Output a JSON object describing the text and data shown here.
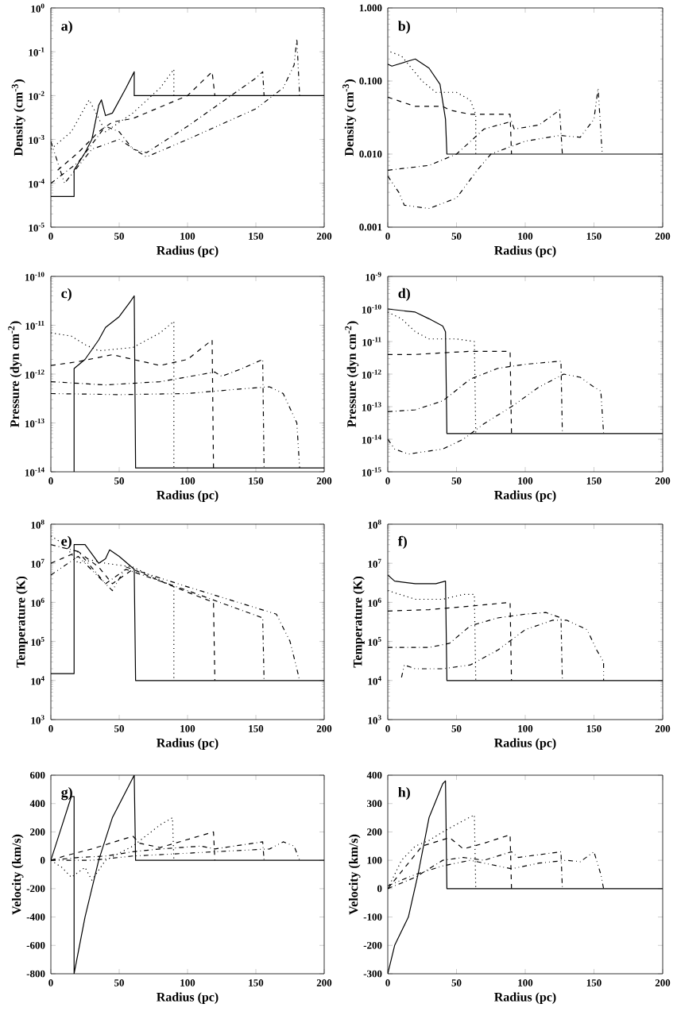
{
  "chart_data": [
    {
      "type": "line",
      "xlabel": "Radius (pc)",
      "ylabel": "Density (cm$^{-3}$)",
      "annotations": [
        "a)"
      ],
      "log": true,
      "xlim": [
        0,
        200
      ],
      "xticks": [
        0,
        50,
        100,
        150,
        200
      ],
      "ylim": [
        1e-05,
        1
      ],
      "yticks": [
        {
          "value": 1e-05,
          "label": "10$^{-5}$"
        },
        {
          "value": 0.0001,
          "label": "10$^{-4}$"
        },
        {
          "value": 0.001,
          "label": "10$^{-3}$"
        },
        {
          "value": 0.01,
          "label": "10$^{-2}$"
        },
        {
          "value": 0.1,
          "label": "10$^{-1}$"
        },
        {
          "value": 1,
          "label": "10$^{0}$"
        }
      ],
      "series": [
        {
          "color": "#000000",
          "line_style": "solid",
          "x": [
            0,
            17,
            17,
            25,
            30,
            35,
            37,
            40,
            45,
            55,
            61,
            61,
            200
          ],
          "values": [
            5e-05,
            5e-05,
            0.0002,
            0.0005,
            0.001,
            0.006,
            0.008,
            0.0035,
            0.004,
            0.015,
            0.035,
            0.01,
            0.01
          ]
        },
        {
          "color": "#000000",
          "line_style": "dotted",
          "x": [
            0,
            15,
            28,
            33,
            40,
            60,
            80,
            90,
            90
          ],
          "values": [
            0.0006,
            0.0015,
            0.008,
            0.004,
            0.0015,
            0.004,
            0.015,
            0.04,
            0.01
          ]
        },
        {
          "color": "#000000",
          "line_style": "dashed",
          "x": [
            5,
            20,
            35,
            45,
            60,
            100,
            118,
            120
          ],
          "values": [
            0.0002,
            0.0005,
            0.0015,
            0.0025,
            0.003,
            0.01,
            0.035,
            0.01
          ]
        },
        {
          "color": "#000000",
          "line_style": "dashdot",
          "x": [
            0,
            20,
            40,
            50,
            60,
            70,
            100,
            150,
            155,
            156
          ],
          "values": [
            0.0001,
            0.0003,
            0.002,
            0.0015,
            0.0006,
            0.0005,
            0.002,
            0.025,
            0.035,
            0.01
          ]
        },
        {
          "color": "#000000",
          "line_style": "dashdotdot",
          "x": [
            0,
            5,
            10,
            30,
            50,
            65,
            70,
            100,
            150,
            170,
            178,
            180,
            182
          ],
          "values": [
            0.0009,
            0.0003,
            0.0001,
            0.0006,
            0.001,
            0.0005,
            0.0004,
            0.001,
            0.005,
            0.015,
            0.05,
            0.2,
            0.01
          ]
        }
      ]
    },
    {
      "type": "line",
      "xlabel": "Radius (pc)",
      "ylabel": "Density (cm$^{-3}$)",
      "annotations": [
        "b)"
      ],
      "log": true,
      "xlim": [
        0,
        200
      ],
      "xticks": [
        0,
        50,
        100,
        150,
        200
      ],
      "ylim": [
        0.001,
        1
      ],
      "yticks": [
        {
          "value": 0.001,
          "label": "0.001"
        },
        {
          "value": 0.01,
          "label": "0.010"
        },
        {
          "value": 0.1,
          "label": "0.100"
        },
        {
          "value": 1,
          "label": "1.000"
        }
      ],
      "series": [
        {
          "color": "#000000",
          "line_style": "solid",
          "x": [
            0,
            3,
            20,
            30,
            38,
            42,
            43,
            200
          ],
          "values": [
            0.17,
            0.16,
            0.2,
            0.15,
            0.09,
            0.03,
            0.01,
            0.01
          ]
        },
        {
          "color": "#000000",
          "line_style": "dotted",
          "x": [
            2,
            10,
            25,
            35,
            50,
            60,
            64,
            64
          ],
          "values": [
            0.25,
            0.22,
            0.1,
            0.07,
            0.07,
            0.055,
            0.035,
            0.01
          ]
        },
        {
          "color": "#000000",
          "line_style": "dashed",
          "x": [
            0,
            20,
            40,
            45,
            60,
            89,
            90
          ],
          "values": [
            0.06,
            0.045,
            0.045,
            0.04,
            0.035,
            0.035,
            0.01
          ]
        },
        {
          "color": "#000000",
          "line_style": "dashdot",
          "x": [
            0,
            30,
            50,
            70,
            90,
            92,
            110,
            125,
            127
          ],
          "values": [
            0.006,
            0.007,
            0.01,
            0.022,
            0.028,
            0.022,
            0.025,
            0.04,
            0.01
          ]
        },
        {
          "color": "#000000",
          "line_style": "dashdotdot",
          "x": [
            0,
            8,
            12,
            30,
            50,
            65,
            75,
            100,
            125,
            140,
            150,
            153,
            156
          ],
          "values": [
            0.005,
            0.003,
            0.002,
            0.0018,
            0.0025,
            0.006,
            0.01,
            0.015,
            0.018,
            0.017,
            0.03,
            0.08,
            0.01
          ]
        }
      ]
    },
    {
      "type": "line",
      "xlabel": "Radius (pc)",
      "ylabel": "Pressure (dyn cm$^{-2}$)",
      "annotations": [
        "c)"
      ],
      "log": true,
      "xlim": [
        0,
        200
      ],
      "xticks": [
        0,
        50,
        100,
        150,
        200
      ],
      "ylim": [
        1e-14,
        1e-10
      ],
      "yticks": [
        {
          "value": 1e-14,
          "label": "10$^{-14}$"
        },
        {
          "value": 1e-13,
          "label": "10$^{-13}$"
        },
        {
          "value": 1e-12,
          "label": "10$^{-12}$"
        },
        {
          "value": 1e-11,
          "label": "10$^{-11}$"
        },
        {
          "value": 1e-10,
          "label": "10$^{-10}$"
        }
      ],
      "series": [
        {
          "color": "#000000",
          "line_style": "solid",
          "x": [
            17,
            17,
            25,
            35,
            40,
            50,
            58,
            61,
            62,
            200
          ],
          "values": [
            1e-14,
            1.3e-12,
            2e-12,
            5e-12,
            9e-12,
            1.5e-11,
            3e-11,
            4e-11,
            1.2e-14,
            1.2e-14
          ]
        },
        {
          "color": "#000000",
          "line_style": "dotted",
          "x": [
            0,
            15,
            25,
            35,
            60,
            80,
            90,
            90
          ],
          "values": [
            7e-12,
            6e-12,
            4e-12,
            3e-12,
            3.5e-12,
            7e-12,
            1.2e-11,
            1.2e-14
          ]
        },
        {
          "color": "#000000",
          "line_style": "dashed",
          "x": [
            0,
            20,
            45,
            60,
            80,
            100,
            118,
            119
          ],
          "values": [
            1.5e-12,
            1.8e-12,
            2.5e-12,
            2e-12,
            1.5e-12,
            2e-12,
            5e-12,
            1.2e-14
          ]
        },
        {
          "color": "#000000",
          "line_style": "dashdot",
          "x": [
            0,
            40,
            80,
            120,
            125,
            140,
            155,
            156
          ],
          "values": [
            7e-13,
            6e-13,
            7e-13,
            1.1e-12,
            9e-13,
            1.3e-12,
            2e-12,
            1.2e-14
          ]
        },
        {
          "color": "#000000",
          "line_style": "dashdotdot",
          "x": [
            0,
            50,
            100,
            140,
            160,
            170,
            175,
            180,
            182
          ],
          "values": [
            4e-13,
            3.8e-13,
            4e-13,
            5e-13,
            5.5e-13,
            4e-13,
            2e-13,
            1e-13,
            1.2e-14
          ]
        }
      ]
    },
    {
      "type": "line",
      "xlabel": "Radius (pc)",
      "ylabel": "Pressure (dyn cm$^{-2}$)",
      "annotations": [
        "d)"
      ],
      "log": true,
      "xlim": [
        0,
        200
      ],
      "xticks": [
        0,
        50,
        100,
        150,
        200
      ],
      "ylim": [
        1e-15,
        1e-09
      ],
      "yticks": [
        {
          "value": 1e-15,
          "label": "10$^{-15}$"
        },
        {
          "value": 1e-14,
          "label": "10$^{-14}$"
        },
        {
          "value": 1e-13,
          "label": "10$^{-13}$"
        },
        {
          "value": 1e-12,
          "label": "10$^{-12}$"
        },
        {
          "value": 1e-11,
          "label": "10$^{-11}$"
        },
        {
          "value": 1e-10,
          "label": "10$^{-10}$"
        },
        {
          "value": 1e-09,
          "label": "10$^{-9}$"
        }
      ],
      "series": [
        {
          "color": "#000000",
          "line_style": "solid",
          "x": [
            0,
            20,
            30,
            40,
            42,
            43,
            200
          ],
          "values": [
            1e-10,
            8e-11,
            5e-11,
            3e-11,
            2e-11,
            1.5e-14,
            1.5e-14
          ]
        },
        {
          "color": "#000000",
          "line_style": "dotted",
          "x": [
            0,
            10,
            20,
            30,
            50,
            63,
            64
          ],
          "values": [
            8e-11,
            5e-11,
            2e-11,
            1.2e-11,
            1.2e-11,
            1e-11,
            1.5e-14
          ]
        },
        {
          "color": "#000000",
          "line_style": "dashed",
          "x": [
            0,
            20,
            40,
            60,
            89,
            90
          ],
          "values": [
            4e-12,
            4e-12,
            4.5e-12,
            5e-12,
            5e-12,
            1.5e-14
          ]
        },
        {
          "color": "#000000",
          "line_style": "dashdot",
          "x": [
            0,
            20,
            40,
            60,
            80,
            100,
            126,
            127
          ],
          "values": [
            7e-14,
            8e-14,
            1.5e-13,
            7e-13,
            1.5e-12,
            2e-12,
            2.5e-12,
            1.5e-14
          ]
        },
        {
          "color": "#000000",
          "line_style": "dashdotdot",
          "x": [
            0,
            5,
            15,
            40,
            55,
            70,
            90,
            110,
            128,
            140,
            150,
            155,
            157
          ],
          "values": [
            1e-14,
            5e-15,
            3.5e-15,
            5e-15,
            1e-14,
            3e-14,
            1e-13,
            4e-13,
            1e-12,
            8e-13,
            4e-13,
            3e-13,
            1.5e-14
          ]
        }
      ]
    },
    {
      "type": "line",
      "xlabel": "Radius (pc)",
      "ylabel": "Temperature (K)",
      "annotations": [
        "e)"
      ],
      "log": true,
      "xlim": [
        0,
        200
      ],
      "xticks": [
        0,
        50,
        100,
        150,
        200
      ],
      "ylim": [
        1000,
        100000000.0
      ],
      "yticks": [
        {
          "value": 1000,
          "label": "10$^{3}$"
        },
        {
          "value": 10000.0,
          "label": "10$^{4}$"
        },
        {
          "value": 100000.0,
          "label": "10$^{5}$"
        },
        {
          "value": 1000000.0,
          "label": "10$^{6}$"
        },
        {
          "value": 10000000.0,
          "label": "10$^{7}$"
        },
        {
          "value": 100000000.0,
          "label": "10$^{8}$"
        }
      ],
      "series": [
        {
          "color": "#000000",
          "line_style": "solid",
          "x": [
            0,
            17,
            17,
            25,
            35,
            40,
            43,
            50,
            61,
            62,
            200
          ],
          "values": [
            15000.0,
            15000.0,
            30000000.0,
            30000000.0,
            10000000.0,
            13000000.0,
            22000000.0,
            15000000.0,
            7000000.0,
            10000.0,
            10000.0
          ]
        },
        {
          "color": "#000000",
          "line_style": "dotted",
          "x": [
            0,
            10,
            20,
            30,
            40,
            60,
            90,
            90
          ],
          "values": [
            50000000.0,
            30000000.0,
            10000000.0,
            12000000.0,
            10000000.0,
            8000000.0,
            2500000.0,
            10000.0
          ]
        },
        {
          "color": "#000000",
          "line_style": "dashed",
          "x": [
            0,
            20,
            35,
            45,
            60,
            90,
            119,
            120
          ],
          "values": [
            10000000.0,
            20000000.0,
            8000000.0,
            3000000.0,
            7000000.0,
            2500000.0,
            1000000.0,
            10000.0
          ]
        },
        {
          "color": "#000000",
          "line_style": "dashdot",
          "x": [
            0,
            20,
            40,
            55,
            100,
            155,
            156
          ],
          "values": [
            30000000.0,
            20000000.0,
            3000000.0,
            7000000.0,
            2000000.0,
            400000.0,
            10000.0
          ]
        },
        {
          "color": "#000000",
          "line_style": "dashdotdot",
          "x": [
            0,
            20,
            45,
            55,
            100,
            165,
            175,
            180,
            182
          ],
          "values": [
            5000000.0,
            15000000.0,
            2000000.0,
            8000000.0,
            2500000.0,
            500000.0,
            100000.0,
            20000.0,
            10000.0
          ]
        }
      ]
    },
    {
      "type": "line",
      "xlabel": "Radius (pc)",
      "ylabel": "Temperature (K)",
      "annotations": [
        "f)"
      ],
      "log": true,
      "xlim": [
        0,
        200
      ],
      "xticks": [
        0,
        50,
        100,
        150,
        200
      ],
      "ylim": [
        1000,
        100000000.0
      ],
      "yticks": [
        {
          "value": 1000,
          "label": "10$^{3}$"
        },
        {
          "value": 10000.0,
          "label": "10$^{4}$"
        },
        {
          "value": 100000.0,
          "label": "10$^{5}$"
        },
        {
          "value": 1000000.0,
          "label": "10$^{6}$"
        },
        {
          "value": 10000000.0,
          "label": "10$^{7}$"
        },
        {
          "value": 100000000.0,
          "label": "10$^{8}$"
        }
      ],
      "series": [
        {
          "color": "#000000",
          "line_style": "solid",
          "x": [
            0,
            5,
            20,
            35,
            42,
            43,
            200
          ],
          "values": [
            5000000.0,
            3500000.0,
            3000000.0,
            3000000.0,
            3500000.0,
            10000.0,
            10000.0
          ]
        },
        {
          "color": "#000000",
          "line_style": "dotted",
          "x": [
            0,
            20,
            40,
            55,
            63,
            64
          ],
          "values": [
            2000000.0,
            1200000.0,
            1200000.0,
            1600000.0,
            1600000.0,
            10000.0
          ]
        },
        {
          "color": "#000000",
          "line_style": "dashed",
          "x": [
            0,
            30,
            60,
            89,
            90
          ],
          "values": [
            600000.0,
            650000.0,
            800000.0,
            1000000.0,
            10000.0
          ]
        },
        {
          "color": "#000000",
          "line_style": "dashdot",
          "x": [
            0,
            30,
            45,
            60,
            80,
            100,
            115,
            126,
            127
          ],
          "values": [
            70000.0,
            70000.0,
            90000.0,
            250000.0,
            400000.0,
            500000.0,
            550000.0,
            400000.0,
            10000.0
          ]
        },
        {
          "color": "#000000",
          "line_style": "dashdotdot",
          "x": [
            10,
            12,
            20,
            40,
            60,
            80,
            100,
            120,
            130,
            145,
            152,
            157,
            157
          ],
          "values": [
            12000.0,
            25000.0,
            20000.0,
            20000.0,
            25000.0,
            60000.0,
            200000.0,
            350000.0,
            350000.0,
            200000.0,
            60000.0,
            30000.0,
            10000.0
          ]
        }
      ]
    },
    {
      "type": "line",
      "xlabel": "Radius (pc)",
      "ylabel": "Velocity (km/s)",
      "annotations": [
        "g)"
      ],
      "xlim": [
        0,
        200
      ],
      "xticks": [
        0,
        50,
        100,
        150,
        200
      ],
      "ylim": [
        -800,
        600
      ],
      "yticks": [
        -800,
        -600,
        -400,
        -200,
        0,
        200,
        400,
        600
      ],
      "series": [
        {
          "color": "#000000",
          "line_style": "solid",
          "x": [
            0,
            15,
            17,
            17,
            25,
            35,
            45,
            61,
            62,
            200
          ],
          "values": [
            0,
            450,
            450,
            -800,
            -400,
            0,
            300,
            600,
            0,
            0
          ]
        },
        {
          "color": "#000000",
          "line_style": "dotted",
          "x": [
            0,
            8,
            15,
            25,
            30,
            40,
            60,
            80,
            89,
            90
          ],
          "values": [
            0,
            -50,
            -120,
            -50,
            -140,
            0,
            100,
            250,
            300,
            0
          ]
        },
        {
          "color": "#000000",
          "line_style": "dashed",
          "x": [
            0,
            10,
            30,
            60,
            65,
            80,
            119,
            120
          ],
          "values": [
            0,
            30,
            80,
            170,
            120,
            90,
            200,
            0
          ]
        },
        {
          "color": "#000000",
          "line_style": "dashdot",
          "x": [
            0,
            20,
            40,
            60,
            80,
            110,
            120,
            155,
            156
          ],
          "values": [
            0,
            20,
            30,
            60,
            80,
            100,
            80,
            130,
            0
          ]
        },
        {
          "color": "#000000",
          "line_style": "dashdotdot",
          "x": [
            0,
            30,
            60,
            100,
            160,
            170,
            178,
            182
          ],
          "values": [
            0,
            0,
            30,
            50,
            80,
            130,
            100,
            0
          ]
        }
      ]
    },
    {
      "type": "line",
      "xlabel": "Radius (pc)",
      "ylabel": "Velocity (km/s)",
      "annotations": [
        "h)"
      ],
      "xlim": [
        0,
        200
      ],
      "xticks": [
        0,
        50,
        100,
        150,
        200
      ],
      "ylim": [
        -300,
        400
      ],
      "yticks": [
        -300,
        -200,
        -100,
        0,
        100,
        200,
        300,
        400
      ],
      "series": [
        {
          "color": "#000000",
          "line_style": "solid",
          "x": [
            0,
            5,
            15,
            22,
            30,
            40,
            42,
            43,
            200
          ],
          "values": [
            -300,
            -200,
            -100,
            50,
            250,
            370,
            380,
            0,
            0
          ]
        },
        {
          "color": "#000000",
          "line_style": "dotted",
          "x": [
            0,
            10,
            20,
            30,
            40,
            55,
            63,
            64
          ],
          "values": [
            0,
            100,
            150,
            170,
            200,
            240,
            260,
            0
          ]
        },
        {
          "color": "#000000",
          "line_style": "dashed",
          "x": [
            0,
            10,
            25,
            45,
            55,
            70,
            89,
            90
          ],
          "values": [
            0,
            60,
            150,
            180,
            140,
            160,
            190,
            0
          ]
        },
        {
          "color": "#000000",
          "line_style": "dashdot",
          "x": [
            0,
            20,
            40,
            55,
            70,
            90,
            95,
            126,
            127
          ],
          "values": [
            0,
            40,
            100,
            110,
            100,
            130,
            110,
            130,
            0
          ]
        },
        {
          "color": "#000000",
          "line_style": "dashdotdot",
          "x": [
            0,
            20,
            40,
            60,
            90,
            110,
            130,
            140,
            150,
            155,
            157
          ],
          "values": [
            10,
            50,
            80,
            100,
            70,
            90,
            100,
            95,
            130,
            50,
            0
          ]
        }
      ]
    }
  ]
}
